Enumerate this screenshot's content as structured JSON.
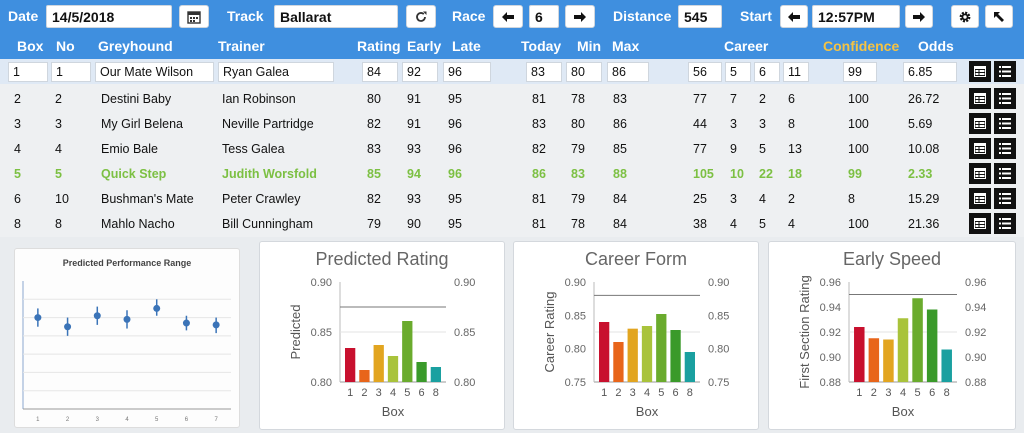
{
  "toolbar": {
    "date_label": "Date",
    "date_value": "14/5/2018",
    "track_label": "Track",
    "track_value": "Ballarat",
    "race_label": "Race",
    "race_value": "6",
    "distance_label": "Distance",
    "distance_value": "545",
    "start_label": "Start",
    "start_value": "12:57PM"
  },
  "icons": {
    "calendar": "calendar-icon",
    "refresh": "refresh-icon",
    "prev": "arrow-left-icon",
    "next": "arrow-right-icon",
    "settings": "gear-icon",
    "popout": "arrow-up-left-icon",
    "table": "table-view-icon",
    "list": "list-view-icon"
  },
  "columns": {
    "box": "Box",
    "no": "No",
    "greyhound": "Greyhound",
    "trainer": "Trainer",
    "rating": "Rating",
    "early": "Early",
    "late": "Late",
    "today": "Today",
    "min": "Min",
    "max": "Max",
    "career": "Career",
    "confidence": "Confidence",
    "odds": "Odds"
  },
  "colors": {
    "header_bg": "#3f8fdf",
    "highlight": "#7cc043",
    "confidence_header": "#f5c343"
  },
  "runners": [
    {
      "box": "1",
      "no": "1",
      "name": "Our Mate Wilson",
      "trainer": "Ryan Galea",
      "rating": "84",
      "early": "92",
      "late": "96",
      "today": "83",
      "min": "80",
      "max": "86",
      "c1": "56",
      "c2": "5",
      "c3": "6",
      "c4": "11",
      "conf": "99",
      "odds": "6.85"
    },
    {
      "box": "2",
      "no": "2",
      "name": "Destini Baby",
      "trainer": "Ian Robinson",
      "rating": "80",
      "early": "91",
      "late": "95",
      "today": "81",
      "min": "78",
      "max": "83",
      "c1": "77",
      "c2": "7",
      "c3": "2",
      "c4": "6",
      "conf": "100",
      "odds": "26.72"
    },
    {
      "box": "3",
      "no": "3",
      "name": "My Girl Belena",
      "trainer": "Neville Partridge",
      "rating": "82",
      "early": "91",
      "late": "96",
      "today": "83",
      "min": "80",
      "max": "86",
      "c1": "44",
      "c2": "3",
      "c3": "3",
      "c4": "8",
      "conf": "100",
      "odds": "5.69"
    },
    {
      "box": "4",
      "no": "4",
      "name": "Emio Bale",
      "trainer": "Tess Galea",
      "rating": "83",
      "early": "93",
      "late": "96",
      "today": "82",
      "min": "79",
      "max": "85",
      "c1": "77",
      "c2": "9",
      "c3": "5",
      "c4": "13",
      "conf": "100",
      "odds": "10.08"
    },
    {
      "box": "5",
      "no": "5",
      "name": "Quick Step",
      "trainer": "Judith Worsfold",
      "rating": "85",
      "early": "94",
      "late": "96",
      "today": "86",
      "min": "83",
      "max": "88",
      "c1": "105",
      "c2": "10",
      "c3": "22",
      "c4": "18",
      "conf": "99",
      "odds": "2.33"
    },
    {
      "box": "6",
      "no": "10",
      "name": "Bushman's Mate",
      "trainer": "Peter Crawley",
      "rating": "82",
      "early": "93",
      "late": "95",
      "today": "81",
      "min": "79",
      "max": "84",
      "c1": "25",
      "c2": "3",
      "c3": "4",
      "c4": "2",
      "conf": "8",
      "odds": "15.29"
    },
    {
      "box": "8",
      "no": "8",
      "name": "Mahlo Nacho",
      "trainer": "Bill Cunningham",
      "rating": "79",
      "early": "90",
      "late": "95",
      "today": "81",
      "min": "78",
      "max": "84",
      "c1": "38",
      "c2": "4",
      "c3": "5",
      "c4": "4",
      "conf": "100",
      "odds": "21.36"
    }
  ],
  "chart_data": [
    {
      "type": "scatter",
      "title": "Predicted Performance Range",
      "x": [
        "1",
        "2",
        "3",
        "4",
        "5",
        "6",
        "7"
      ],
      "values": [
        0.82,
        0.81,
        0.822,
        0.818,
        0.83,
        0.814,
        0.812
      ],
      "low": [
        0.81,
        0.8,
        0.812,
        0.808,
        0.822,
        0.806,
        0.803
      ],
      "high": [
        0.83,
        0.82,
        0.832,
        0.828,
        0.84,
        0.822,
        0.82
      ],
      "ylim": [
        0.72,
        0.86
      ]
    },
    {
      "type": "bar",
      "title": "Predicted Rating",
      "categories": [
        "1",
        "2",
        "3",
        "4",
        "5",
        "6",
        "8"
      ],
      "values": [
        0.834,
        0.812,
        0.837,
        0.826,
        0.861,
        0.82,
        0.815
      ],
      "xlabel": "Box",
      "ylabel": "Predicted",
      "ylim": [
        0.8,
        0.9
      ],
      "yticks": [
        "0.90",
        "0.85",
        "0.80"
      ],
      "ref_line": 0.875
    },
    {
      "type": "bar",
      "title": "Career Form",
      "categories": [
        "1",
        "2",
        "3",
        "4",
        "5",
        "6",
        "8"
      ],
      "values": [
        0.84,
        0.81,
        0.83,
        0.834,
        0.852,
        0.828,
        0.795
      ],
      "xlabel": "Box",
      "ylabel": "Career Rating",
      "ylim": [
        0.75,
        0.9
      ],
      "yticks": [
        "0.90",
        "0.85",
        "0.80",
        "0.75"
      ],
      "ref_line": 0.88
    },
    {
      "type": "bar",
      "title": "Early Speed",
      "categories": [
        "1",
        "2",
        "3",
        "4",
        "5",
        "6",
        "8"
      ],
      "values": [
        0.924,
        0.915,
        0.914,
        0.931,
        0.947,
        0.938,
        0.906
      ],
      "xlabel": "Box",
      "ylabel": "First Section Rating",
      "ylim": [
        0.88,
        0.96
      ],
      "yticks": [
        "0.96",
        "0.94",
        "0.92",
        "0.90",
        "0.88"
      ],
      "ref_line": 0.95
    }
  ]
}
